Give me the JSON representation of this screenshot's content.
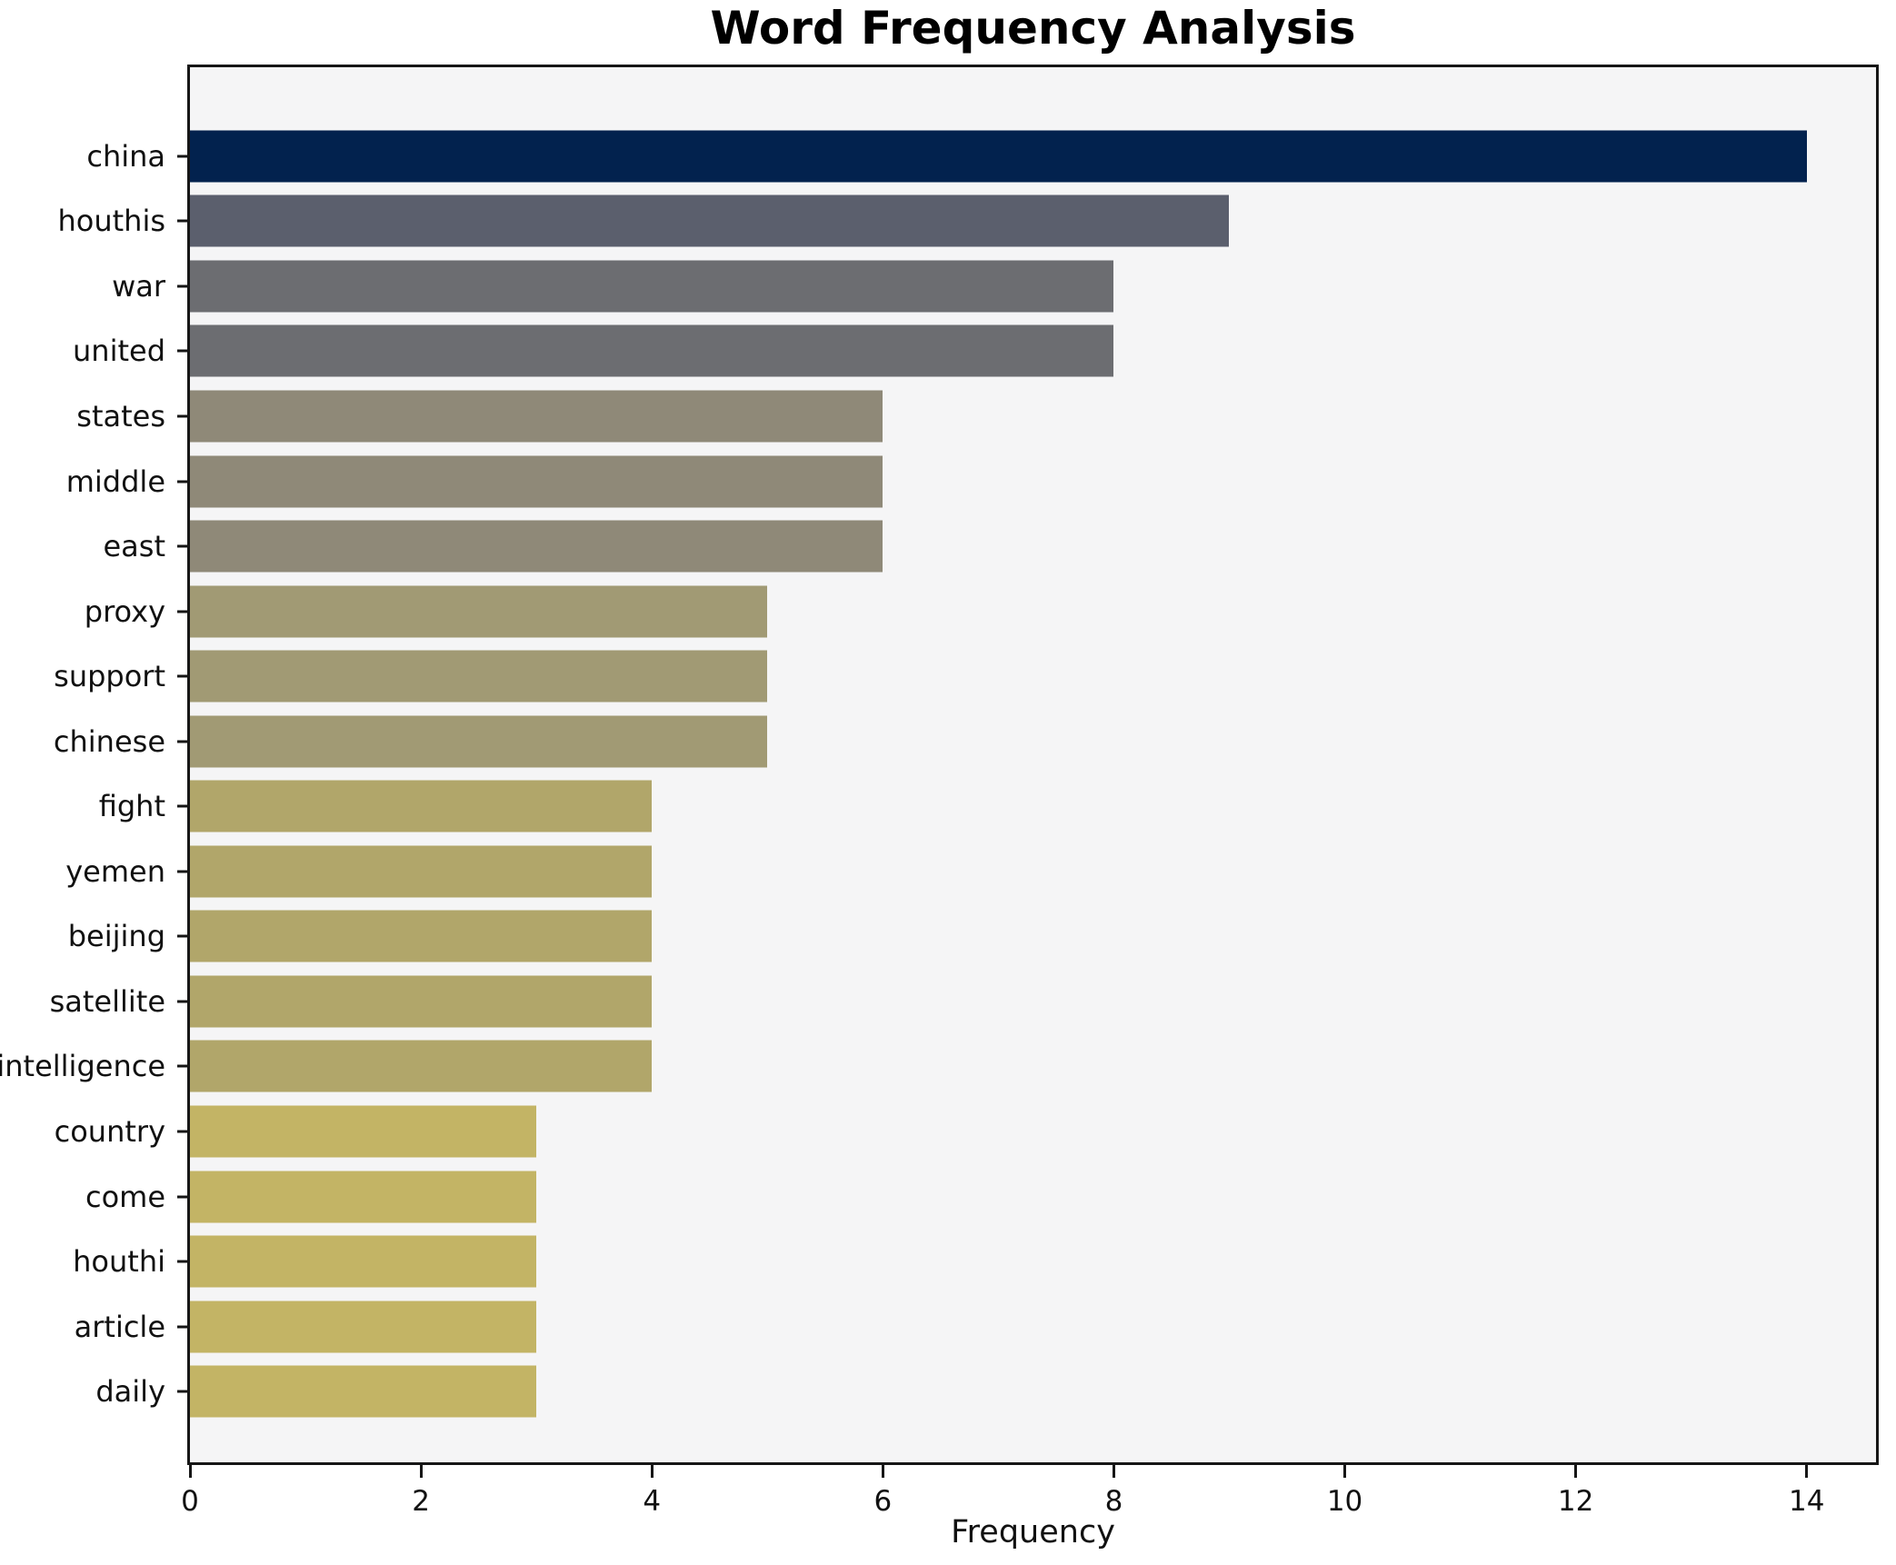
{
  "page": {
    "background": "#ffffff"
  },
  "chart_data": {
    "type": "bar",
    "orientation": "horizontal",
    "title": "Word Frequency Analysis",
    "xlabel": "Frequency",
    "ylabel": "",
    "xlim": [
      0,
      14.6
    ],
    "xticks": [
      0,
      2,
      4,
      6,
      8,
      10,
      12,
      14
    ],
    "grid": false,
    "legend_position": "none",
    "plot_background": "#f5f5f6",
    "spine_color": "#161616",
    "categories": [
      "china",
      "houthis",
      "war",
      "united",
      "states",
      "middle",
      "east",
      "proxy",
      "support",
      "chinese",
      "fight",
      "yemen",
      "beijing",
      "satellite",
      "intelligence",
      "country",
      "come",
      "houthi",
      "article",
      "daily"
    ],
    "values": [
      14,
      9,
      8,
      8,
      6,
      6,
      6,
      5,
      5,
      5,
      4,
      4,
      4,
      4,
      4,
      3,
      3,
      3,
      3,
      3
    ],
    "bar_colors": [
      "#02224e",
      "#5b5f6d",
      "#6c6d71",
      "#6c6d71",
      "#8f8978",
      "#8f8978",
      "#8f8978",
      "#a19a74",
      "#a19a74",
      "#a19a74",
      "#b1a66a",
      "#b1a66a",
      "#b1a66a",
      "#b1a66a",
      "#b1a66a",
      "#c3b465",
      "#c3b465",
      "#c3b465",
      "#c3b465",
      "#c3b465"
    ]
  }
}
